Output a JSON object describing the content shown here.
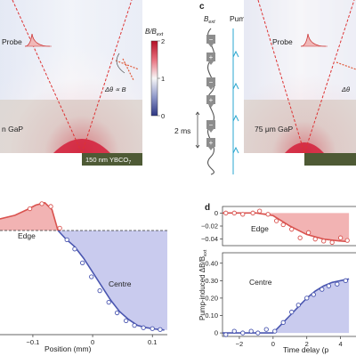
{
  "panels": {
    "c": "c",
    "d": "d"
  },
  "top_left": {
    "probe_label": "Probe",
    "angle_label": "Δθ ∝ B",
    "substrate_label": "n GaP",
    "film_label": "150 nm YBCO",
    "film_label_sub": "7",
    "colorbar": {
      "title": "B/B",
      "title_sub": "ext",
      "ticks": [
        "2",
        "1",
        "0"
      ]
    }
  },
  "panel_c": {
    "bext_label": "B",
    "bext_sub": "ext",
    "pump_label": "Pump",
    "time_scale": "2 ms",
    "substrate_label": "75 μm GaP",
    "probe_label": "Probe",
    "angle_label": "Δθ",
    "signs": [
      "−",
      "+",
      "−",
      "+",
      "−",
      "+"
    ]
  },
  "chart_data": [
    {
      "type": "line",
      "panel": "left",
      "xlabel": "Position (mm)",
      "x_ticks": [
        "−0.1",
        "0",
        "0.1"
      ],
      "annotations": [
        "Edge",
        "Centre"
      ],
      "x": [
        -0.155,
        -0.13,
        -0.11,
        -0.095,
        -0.08,
        -0.068,
        -0.058,
        -0.045,
        -0.03,
        -0.015,
        0.0,
        0.015,
        0.03,
        0.045,
        0.06,
        0.075,
        0.09,
        0.105,
        0.12
      ],
      "y": [
        0.25,
        0.33,
        0.45,
        0.55,
        0.6,
        0.45,
        0.0,
        -0.18,
        -0.35,
        -0.6,
        -0.9,
        -1.2,
        -1.5,
        -1.75,
        -1.92,
        -2.05,
        -2.1,
        -2.13,
        -2.15
      ],
      "markers_x": [
        -0.105,
        -0.085,
        -0.07,
        -0.055,
        -0.043,
        -0.03,
        -0.017,
        -0.002,
        0.012,
        0.027,
        0.041,
        0.056,
        0.07,
        0.085,
        0.1,
        0.113
      ],
      "markers_y": [
        0.47,
        0.58,
        0.52,
        0.05,
        -0.2,
        -0.4,
        -0.7,
        -1.0,
        -1.3,
        -1.55,
        -1.78,
        -1.95,
        -2.05,
        -2.1,
        -2.12,
        -2.14
      ]
    },
    {
      "type": "line",
      "panel": "d-top",
      "annotation": "Edge",
      "y_ticks": [
        "0",
        "−0.02",
        "−0.04"
      ],
      "ylim": [
        -0.05,
        0.01
      ],
      "x": [
        -3,
        -2,
        -1,
        0,
        1,
        2,
        3,
        4,
        4.5
      ],
      "y": [
        0.0,
        0.0,
        0.0,
        -0.004,
        -0.02,
        -0.033,
        -0.04,
        -0.043,
        -0.044
      ],
      "markers_x": [
        -2.8,
        -2.3,
        -1.8,
        -1.2,
        -0.8,
        -0.3,
        0.2,
        0.6,
        1.1,
        1.6,
        2.1,
        2.5,
        3.0,
        3.5,
        4.0,
        4.4
      ],
      "markers_y": [
        0.0,
        0.0,
        -0.002,
        0.0,
        0.003,
        -0.002,
        -0.012,
        -0.018,
        -0.025,
        -0.038,
        -0.03,
        -0.04,
        -0.043,
        -0.045,
        -0.038,
        -0.042
      ]
    },
    {
      "type": "line",
      "panel": "d-bottom",
      "annotation": "Centre",
      "xlabel": "Time delay (p",
      "ylabel": "Pump-induced ΔB/B",
      "ylabel_sub": "ext",
      "x_ticks": [
        "−2",
        "0",
        "2",
        "4"
      ],
      "y_ticks": [
        "0.40",
        "0.30",
        "0.20",
        "0.10",
        "0"
      ],
      "xlim": [
        -3,
        4.5
      ],
      "ylim": [
        -0.02,
        0.46
      ],
      "x": [
        -3,
        -2,
        -1,
        0,
        0.5,
        1,
        1.5,
        2,
        2.5,
        3,
        3.5,
        4,
        4.5
      ],
      "y": [
        0.0,
        0.0,
        0.0,
        0.0,
        0.05,
        0.1,
        0.15,
        0.2,
        0.24,
        0.27,
        0.29,
        0.3,
        0.31
      ],
      "markers_x": [
        -2.8,
        -2.3,
        -1.8,
        -1.3,
        -0.9,
        -0.4,
        0.1,
        0.6,
        1.1,
        1.5,
        2.0,
        2.4,
        2.9,
        3.3,
        3.8,
        4.3
      ],
      "markers_y": [
        -0.01,
        0.01,
        0.0,
        0.01,
        0.0,
        0.02,
        0.01,
        0.06,
        0.12,
        0.16,
        0.2,
        0.22,
        0.25,
        0.27,
        0.28,
        0.3
      ]
    }
  ]
}
